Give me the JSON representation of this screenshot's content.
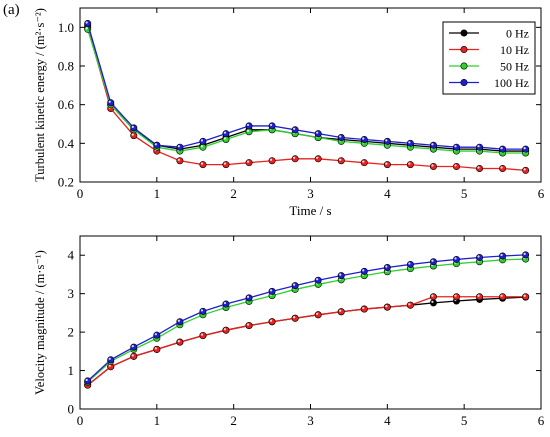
{
  "panel_label": "(a)",
  "chart_data": [
    {
      "type": "line",
      "title": "",
      "xlabel": "Time / s",
      "ylabel": "Turbulent kinetic energy / (m²·s⁻²)",
      "xlim": [
        0,
        6
      ],
      "ylim": [
        0.2,
        1.1
      ],
      "xticks": [
        0,
        1,
        2,
        3,
        4,
        5,
        6
      ],
      "yticks": [
        0.2,
        0.4,
        0.6,
        0.8,
        1.0
      ],
      "ytick_labels": [
        "0.2",
        "0.4",
        "0.6",
        "0.8",
        "1.0"
      ],
      "grid": false,
      "legend_position": "top-right",
      "series": [
        {
          "name": "0 Hz",
          "color": "#000000",
          "x": [
            0.1,
            0.4,
            0.7,
            1.0,
            1.3,
            1.6,
            1.9,
            2.2,
            2.5,
            2.8,
            3.1,
            3.4,
            3.7,
            4.0,
            4.3,
            4.6,
            4.9,
            5.2,
            5.5,
            5.8
          ],
          "y": [
            1.01,
            0.6,
            0.47,
            0.39,
            0.37,
            0.39,
            0.43,
            0.47,
            0.47,
            0.45,
            0.43,
            0.42,
            0.41,
            0.4,
            0.39,
            0.38,
            0.37,
            0.37,
            0.36,
            0.36
          ]
        },
        {
          "name": "10 Hz",
          "color": "#e8221f",
          "x": [
            0.1,
            0.4,
            0.7,
            1.0,
            1.3,
            1.6,
            1.9,
            2.2,
            2.5,
            2.8,
            3.1,
            3.4,
            3.7,
            4.0,
            4.3,
            4.6,
            4.9,
            5.2,
            5.5,
            5.8
          ],
          "y": [
            1.0,
            0.58,
            0.44,
            0.36,
            0.31,
            0.29,
            0.29,
            0.3,
            0.31,
            0.32,
            0.32,
            0.31,
            0.3,
            0.29,
            0.29,
            0.28,
            0.28,
            0.27,
            0.27,
            0.26
          ]
        },
        {
          "name": "50 Hz",
          "color": "#2ed12e",
          "x": [
            0.1,
            0.4,
            0.7,
            1.0,
            1.3,
            1.6,
            1.9,
            2.2,
            2.5,
            2.8,
            3.1,
            3.4,
            3.7,
            4.0,
            4.3,
            4.6,
            4.9,
            5.2,
            5.5,
            5.8
          ],
          "y": [
            0.99,
            0.6,
            0.47,
            0.38,
            0.36,
            0.38,
            0.42,
            0.46,
            0.47,
            0.45,
            0.43,
            0.41,
            0.4,
            0.39,
            0.38,
            0.37,
            0.36,
            0.36,
            0.35,
            0.35
          ]
        },
        {
          "name": "100 Hz",
          "color": "#1f1fd1",
          "x": [
            0.1,
            0.4,
            0.7,
            1.0,
            1.3,
            1.6,
            1.9,
            2.2,
            2.5,
            2.8,
            3.1,
            3.4,
            3.7,
            4.0,
            4.3,
            4.6,
            4.9,
            5.2,
            5.5,
            5.8
          ],
          "y": [
            1.02,
            0.61,
            0.48,
            0.39,
            0.38,
            0.41,
            0.45,
            0.49,
            0.49,
            0.47,
            0.45,
            0.43,
            0.42,
            0.41,
            0.4,
            0.39,
            0.38,
            0.38,
            0.37,
            0.37
          ]
        }
      ]
    },
    {
      "type": "line",
      "title": "",
      "xlabel": "",
      "ylabel": "Velocity magnitude / (m·s⁻¹)",
      "xlim": [
        0,
        6
      ],
      "ylim": [
        0,
        4.5
      ],
      "xticks": [
        0,
        1,
        2,
        3,
        4,
        5,
        6
      ],
      "yticks": [
        0,
        1,
        2,
        3,
        4
      ],
      "ytick_labels": [
        "0",
        "1",
        "2",
        "3",
        "4"
      ],
      "grid": false,
      "legend_position": "none",
      "series": [
        {
          "name": "0 Hz",
          "color": "#000000",
          "x": [
            0.1,
            0.4,
            0.7,
            1.0,
            1.3,
            1.6,
            1.9,
            2.2,
            2.5,
            2.8,
            3.1,
            3.4,
            3.7,
            4.0,
            4.3,
            4.6,
            4.9,
            5.2,
            5.5,
            5.8
          ],
          "y": [
            0.62,
            1.1,
            1.37,
            1.55,
            1.74,
            1.91,
            2.05,
            2.17,
            2.27,
            2.36,
            2.45,
            2.53,
            2.6,
            2.65,
            2.7,
            2.76,
            2.81,
            2.85,
            2.88,
            2.91
          ]
        },
        {
          "name": "10 Hz",
          "color": "#e8221f",
          "x": [
            0.1,
            0.4,
            0.7,
            1.0,
            1.3,
            1.6,
            1.9,
            2.2,
            2.5,
            2.8,
            3.1,
            3.4,
            3.7,
            4.0,
            4.3,
            4.6,
            4.9,
            5.2,
            5.5,
            5.8
          ],
          "y": [
            0.62,
            1.1,
            1.37,
            1.55,
            1.74,
            1.91,
            2.05,
            2.17,
            2.27,
            2.36,
            2.45,
            2.53,
            2.6,
            2.65,
            2.7,
            2.92,
            2.92,
            2.92,
            2.92,
            2.92
          ]
        },
        {
          "name": "50 Hz",
          "color": "#2ed12e",
          "x": [
            0.1,
            0.4,
            0.7,
            1.0,
            1.3,
            1.6,
            1.9,
            2.2,
            2.5,
            2.8,
            3.1,
            3.4,
            3.7,
            4.0,
            4.3,
            4.6,
            4.9,
            5.2,
            5.5,
            5.8
          ],
          "y": [
            0.7,
            1.24,
            1.55,
            1.84,
            2.19,
            2.45,
            2.64,
            2.8,
            2.95,
            3.11,
            3.24,
            3.36,
            3.47,
            3.57,
            3.65,
            3.72,
            3.78,
            3.83,
            3.88,
            3.9
          ]
        },
        {
          "name": "100 Hz",
          "color": "#1f1fd1",
          "x": [
            0.1,
            0.4,
            0.7,
            1.0,
            1.3,
            1.6,
            1.9,
            2.2,
            2.5,
            2.8,
            3.1,
            3.4,
            3.7,
            4.0,
            4.3,
            4.6,
            4.9,
            5.2,
            5.5,
            5.8
          ],
          "y": [
            0.73,
            1.28,
            1.61,
            1.92,
            2.27,
            2.54,
            2.73,
            2.89,
            3.06,
            3.21,
            3.35,
            3.47,
            3.58,
            3.68,
            3.76,
            3.83,
            3.89,
            3.94,
            3.98,
            4.01
          ]
        }
      ]
    }
  ]
}
